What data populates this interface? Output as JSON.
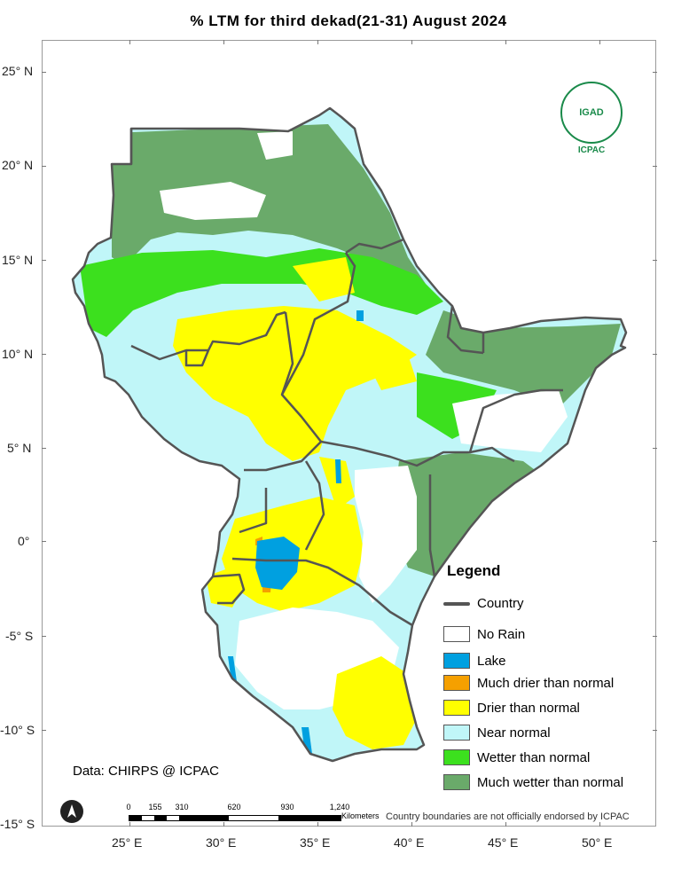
{
  "title": "% LTM  for  third dekad(21-31) August 2024",
  "latitude_labels": [
    "25° N",
    "20° N",
    "15° N",
    "10° N",
    "5° N",
    "0°",
    "-5° S",
    "-10° S",
    "-15° S"
  ],
  "longitude_labels": [
    "25° E",
    "30° E",
    "35° E",
    "40° E",
    "45° E",
    "50° E"
  ],
  "logo": {
    "ring_text": "IGAD",
    "sub_text": "ICPAC"
  },
  "legend": {
    "title": "Legend",
    "country_label": "Country",
    "items": [
      {
        "label": "No Rain",
        "color": "#ffffff"
      },
      {
        "label": "Lake",
        "color": "#00a0e0"
      },
      {
        "label": "Much drier than normal",
        "color": "#f5a000"
      },
      {
        "label": "Drier than normal",
        "color": "#ffff00"
      },
      {
        "label": "Near normal",
        "color": "#c0f6f8"
      },
      {
        "label": "Wetter than normal",
        "color": "#3ce01e"
      },
      {
        "label": "Much wetter than normal",
        "color": "#6aaa6a"
      }
    ]
  },
  "source": "Data: CHIRPS @ ICPAC",
  "scalebar": {
    "ticks": [
      "0",
      "155",
      "310",
      "620",
      "930",
      "1,240"
    ],
    "unit": "Kilometers"
  },
  "disclaimer": "Country boundaries are not officially endorsed by ICPAC",
  "colors": {
    "country_border": "#555555",
    "frame": "#9a9a9a"
  }
}
